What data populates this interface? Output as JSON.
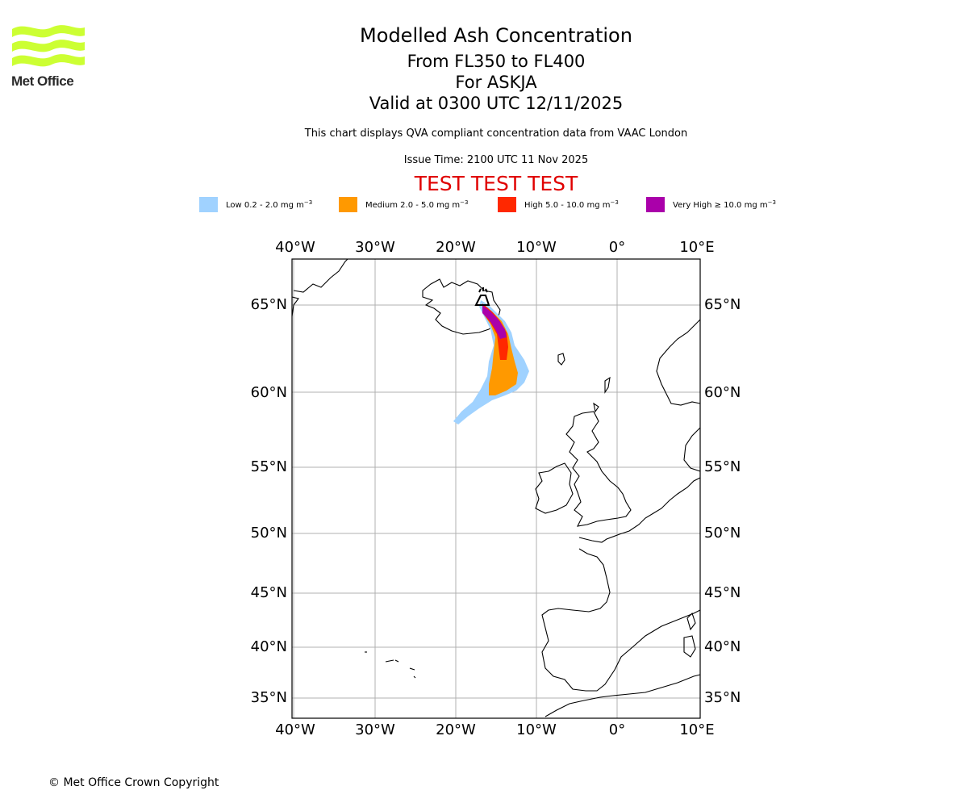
{
  "header": {
    "logo_text": "Met Office",
    "title": "Modelled Ash Concentration",
    "flight_levels": "From FL350 to FL400",
    "volcano": "For ASKJA",
    "valid_time": "Valid at 0300 UTC 12/11/2025",
    "note": "This chart displays QVA compliant concentration data from VAAC London",
    "issue_time": "Issue Time: 2100 UTC 11 Nov 2025",
    "test_banner": "TEST TEST TEST"
  },
  "legend": [
    {
      "label": "Low 0.2 - 2.0 mg m",
      "unit_exp": "−3",
      "color": "#a0d2ff"
    },
    {
      "label": "Medium 2.0 - 5.0 mg m",
      "unit_exp": "−3",
      "color": "#ff9900"
    },
    {
      "label": "High 5.0 - 10.0 mg m",
      "unit_exp": "−3",
      "color": "#ff2800"
    },
    {
      "label": "Very High  ≥  10.0 mg m",
      "unit_exp": "−3",
      "color": "#aa00aa"
    }
  ],
  "map": {
    "lon_labels": [
      "40°W",
      "30°W",
      "20°W",
      "10°W",
      "0°",
      "10°E"
    ],
    "lat_labels": [
      "65°N",
      "60°N",
      "55°N",
      "50°N",
      "45°N",
      "40°N",
      "35°N"
    ],
    "volcano_icon": "volcano-icon"
  },
  "footer": {
    "copyright": "© Met Office Crown Copyright"
  }
}
